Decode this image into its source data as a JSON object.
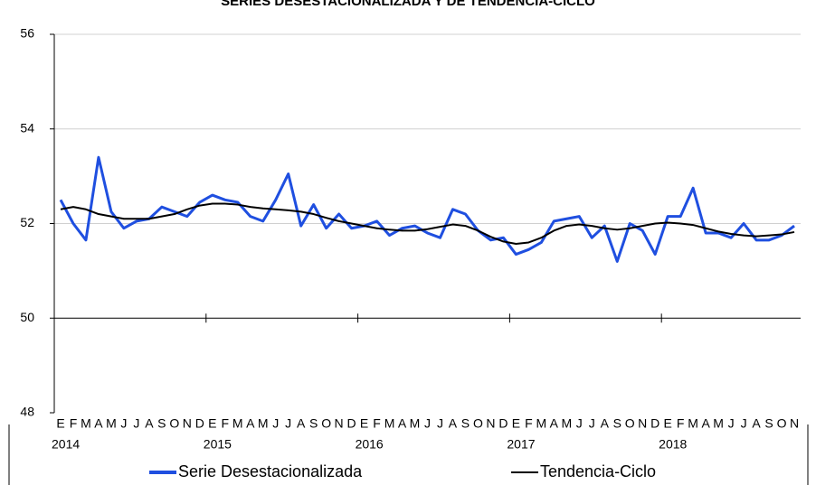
{
  "chart_data": {
    "type": "line",
    "title": "SERIES DESESTACIONALIZADA Y DE TENDENCIA-CICLO",
    "categories": [
      "E",
      "F",
      "M",
      "A",
      "M",
      "J",
      "J",
      "A",
      "S",
      "O",
      "N",
      "D",
      "E",
      "F",
      "M",
      "A",
      "M",
      "J",
      "J",
      "A",
      "S",
      "O",
      "N",
      "D",
      "E",
      "F",
      "M",
      "A",
      "M",
      "J",
      "J",
      "A",
      "S",
      "O",
      "N",
      "D",
      "E",
      "F",
      "M",
      "A",
      "M",
      "J",
      "J",
      "A",
      "S",
      "O",
      "N",
      "D",
      "E",
      "F",
      "M",
      "A",
      "M",
      "J",
      "J",
      "A",
      "S",
      "O",
      "N"
    ],
    "year_labels": [
      "2014",
      "2015",
      "2016",
      "2017",
      "2018"
    ],
    "series": [
      {
        "name": "Serie Desestacionalizada",
        "color": "#1f4fe0",
        "values": [
          52.5,
          52.0,
          51.65,
          53.4,
          52.25,
          51.9,
          52.05,
          52.1,
          52.35,
          52.25,
          52.15,
          52.45,
          52.6,
          52.5,
          52.45,
          52.15,
          52.05,
          52.5,
          53.05,
          51.95,
          52.4,
          51.9,
          52.2,
          51.9,
          51.95,
          52.05,
          51.75,
          51.9,
          51.95,
          51.8,
          51.7,
          52.3,
          52.2,
          51.85,
          51.65,
          51.7,
          51.35,
          51.45,
          51.6,
          52.05,
          52.1,
          52.15,
          51.7,
          51.95,
          51.2,
          52.0,
          51.85,
          51.35,
          52.15,
          52.15,
          52.75,
          51.8,
          51.8,
          51.7,
          52.0,
          51.65,
          51.65,
          51.75,
          51.95
        ]
      },
      {
        "name": "Tendencia-Ciclo",
        "color": "#000000",
        "values": [
          52.3,
          52.35,
          52.3,
          52.2,
          52.15,
          52.1,
          52.1,
          52.1,
          52.15,
          52.2,
          52.3,
          52.38,
          52.42,
          52.42,
          52.4,
          52.35,
          52.32,
          52.3,
          52.28,
          52.25,
          52.2,
          52.12,
          52.05,
          52.0,
          51.95,
          51.9,
          51.87,
          51.85,
          51.85,
          51.88,
          51.93,
          51.98,
          51.95,
          51.85,
          51.72,
          51.62,
          51.57,
          51.6,
          51.7,
          51.85,
          51.95,
          51.98,
          51.95,
          51.9,
          51.87,
          51.9,
          51.95,
          52.0,
          52.02,
          52.0,
          51.97,
          51.9,
          51.83,
          51.78,
          51.75,
          51.73,
          51.75,
          51.77,
          51.82
        ]
      }
    ],
    "ylim": [
      48,
      56
    ],
    "yticks": [
      48,
      50,
      52,
      54,
      56
    ],
    "grid": true,
    "xaxis_crosses": 50,
    "legend": "bottom"
  }
}
